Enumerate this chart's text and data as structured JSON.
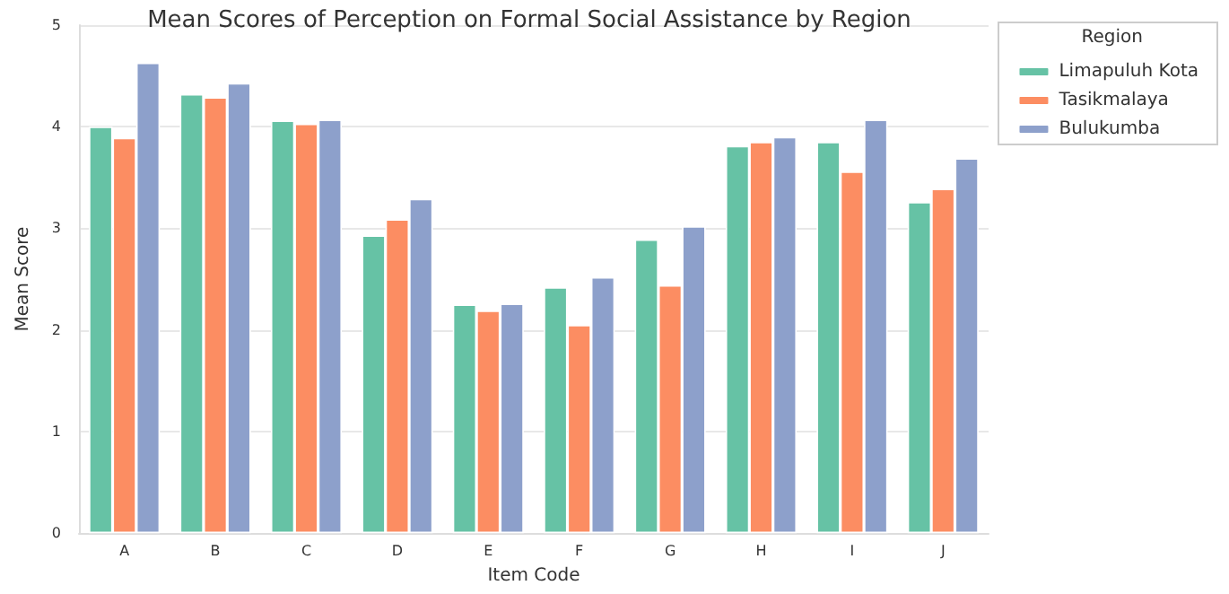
{
  "chart_data": {
    "type": "bar",
    "title": "Mean Scores of Perception on Formal Social Assistance by Region",
    "xlabel": "Item Code",
    "ylabel": "Mean Score",
    "legend_title": "Region",
    "categories": [
      "A",
      "B",
      "C",
      "D",
      "E",
      "F",
      "G",
      "H",
      "I",
      "J"
    ],
    "series": [
      {
        "name": "Limapuluh Kota",
        "color": "#66c2a5",
        "values": [
          4.0,
          4.32,
          4.06,
          2.93,
          2.25,
          2.42,
          2.89,
          3.81,
          3.85,
          3.26
        ]
      },
      {
        "name": "Tasikmalaya",
        "color": "#fc8d62",
        "values": [
          3.89,
          4.29,
          4.03,
          3.09,
          2.19,
          2.05,
          2.44,
          3.85,
          3.56,
          3.39
        ]
      },
      {
        "name": "Bulukumba",
        "color": "#8da0cb",
        "values": [
          4.63,
          4.43,
          4.07,
          3.29,
          2.26,
          2.52,
          3.02,
          3.9,
          4.07,
          3.69
        ]
      }
    ],
    "ylim": [
      0,
      5
    ],
    "yticks": [
      0,
      1,
      2,
      3,
      4,
      5
    ],
    "grid": "y",
    "legend": "top right"
  }
}
